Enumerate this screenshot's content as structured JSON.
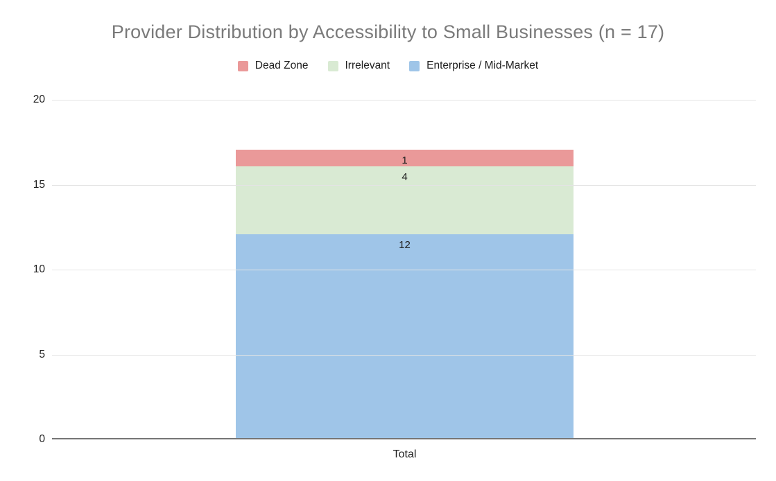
{
  "chart": {
    "title": "Provider Distribution by Accessibility to Small Businesses (n = 17)",
    "x_category_label": "Total"
  },
  "legend": {
    "items": [
      {
        "label": "Dead Zone",
        "color": "#ea9999"
      },
      {
        "label": "Irrelevant",
        "color": "#d9ead3"
      },
      {
        "label": "Enterprise / Mid-Market",
        "color": "#9fc5e8"
      }
    ]
  },
  "chart_data": {
    "type": "bar",
    "stacked": true,
    "title": "Provider Distribution by Accessibility to Small Businesses (n = 17)",
    "categories": [
      "Total"
    ],
    "series": [
      {
        "name": "Enterprise / Mid-Market",
        "values": [
          12
        ],
        "color": "#9fc5e8"
      },
      {
        "name": "Irrelevant",
        "values": [
          4
        ],
        "color": "#d9ead3"
      },
      {
        "name": "Dead Zone",
        "values": [
          1
        ],
        "color": "#ea9999"
      }
    ],
    "stack_total": 17,
    "xlabel": "",
    "ylabel": "",
    "ylim": [
      0,
      20
    ],
    "y_ticks": [
      0,
      5,
      10,
      15,
      20
    ],
    "grid": true,
    "legend_position": "top",
    "data_labels": true
  },
  "colors": {
    "title_text": "#7a7a7a",
    "axis_text": "#212121",
    "data_label_text": "#212121",
    "gridline": "#e4e4e4",
    "baseline": "#757575",
    "background": "#ffffff"
  }
}
